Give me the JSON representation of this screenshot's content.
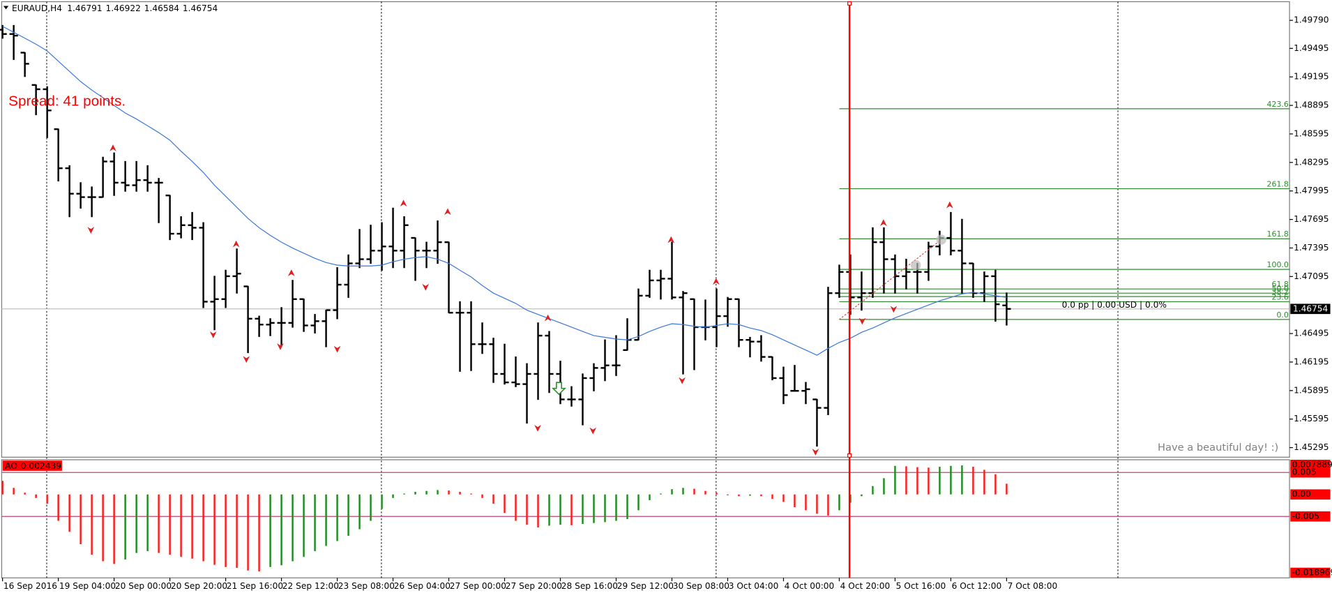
{
  "chart_data": [
    {
      "type": "ohlc",
      "title": "EURAUD,H4",
      "categories": [
        "16 Sep 2016",
        null,
        null,
        null,
        null,
        "19 Sep 04:00",
        null,
        null,
        null,
        null,
        "20 Sep 00:00",
        null,
        null,
        null,
        null,
        "20 Sep 20:00",
        null,
        null,
        null,
        null,
        "21 Sep 16:00",
        null,
        null,
        null,
        null,
        "22 Sep 12:00",
        null,
        null,
        null,
        null,
        "23 Sep 08:00",
        null,
        null,
        null,
        null,
        "26 Sep 04:00",
        null,
        null,
        null,
        null,
        "27 Sep 00:00",
        null,
        null,
        null,
        null,
        "27 Sep 20:00",
        null,
        null,
        null,
        null,
        "28 Sep 16:00",
        null,
        null,
        null,
        null,
        "29 Sep 12:00",
        null,
        null,
        null,
        null,
        "30 Sep 08:00",
        null,
        null,
        null,
        null,
        "3 Oct 04:00",
        null,
        null,
        null,
        null,
        "4 Oct 00:00",
        null,
        null,
        null,
        null,
        "4 Oct 20:00",
        null,
        null,
        null,
        null,
        "5 Oct 16:00",
        null,
        null,
        null,
        null,
        "6 Oct 12:00",
        null,
        null,
        null,
        null,
        "7 Oct 08:00"
      ],
      "open": [
        1.49691,
        1.49646,
        1.4945,
        1.4911,
        1.49065,
        1.48645,
        1.48234,
        1.47966,
        1.4793,
        1.4793,
        1.48305,
        1.48082,
        1.48055,
        1.48109,
        1.48082,
        1.47948,
        1.47545,
        1.47635,
        1.47608,
        1.4683,
        1.46857,
        1.47098,
        1.46991,
        1.46651,
        1.46589,
        1.46607,
        1.46607,
        1.46857,
        1.4658,
        1.46625,
        1.46741,
        1.47009,
        1.47233,
        1.47277,
        1.47367,
        1.47411,
        1.47367,
        1.47501,
        1.47367,
        1.47367,
        1.47456,
        1.46714,
        1.46714,
        1.46383,
        1.46383,
        1.4607,
        1.45981,
        1.45963,
        1.4607,
        1.46473,
        1.4607,
        1.45802,
        1.45802,
        1.46026,
        1.46133,
        1.4616,
        1.46321,
        1.46428,
        1.46893,
        1.47054,
        1.47072,
        1.46875,
        1.46857,
        1.46562,
        1.46562,
        1.46678,
        1.46857,
        1.46428,
        1.4641,
        1.46249,
        1.46026,
        1.45892,
        1.45892,
        1.45802,
        1.45713,
        1.4692,
        1.47143,
        1.46875,
        1.4692,
        1.47456,
        1.47277,
        1.47098,
        1.47143,
        1.47143,
        1.47411,
        1.47501,
        1.47367,
        1.47233,
        1.4692,
        1.47098,
        1.46791
      ],
      "high": [
        1.49736,
        1.49736,
        1.4945,
        1.4911,
        1.49092,
        1.48645,
        1.48261,
        1.48082,
        1.48037,
        1.4835,
        1.48395,
        1.48305,
        1.48305,
        1.48261,
        1.48127,
        1.47948,
        1.47724,
        1.47769,
        1.47662,
        1.47098,
        1.47161,
        1.47385,
        1.46991,
        1.46678,
        1.46651,
        1.46768,
        1.47054,
        1.46857,
        1.46696,
        1.46741,
        1.47188,
        1.47322,
        1.4759,
        1.47635,
        1.47662,
        1.47814,
        1.47724,
        1.47501,
        1.47456,
        1.4768,
        1.47456,
        1.4683,
        1.4683,
        1.46607,
        1.46446,
        1.46383,
        1.46249,
        1.46178,
        1.46607,
        1.46517,
        1.46204,
        1.45936,
        1.4607,
        1.46178,
        1.46428,
        1.46473,
        1.46651,
        1.46964,
        1.47161,
        1.47161,
        1.47456,
        1.46938,
        1.46857,
        1.46848,
        1.46964,
        1.46875,
        1.46857,
        1.46455,
        1.46473,
        1.46249,
        1.46142,
        1.4616,
        1.45981,
        1.45802,
        1.46982,
        1.47215,
        1.47322,
        1.47143,
        1.47608,
        1.47608,
        1.47322,
        1.47277,
        1.47233,
        1.47456,
        1.47572,
        1.47769,
        1.47697,
        1.47233,
        1.47143,
        1.47161,
        1.46922
      ],
      "low": [
        1.49602,
        1.49378,
        1.49199,
        1.48797,
        1.48556,
        1.481,
        1.47724,
        1.47814,
        1.47724,
        1.4793,
        1.47948,
        1.47992,
        1.47992,
        1.47992,
        1.47662,
        1.47483,
        1.47501,
        1.47483,
        1.46768,
        1.46535,
        1.46768,
        1.4692,
        1.46294,
        1.46464,
        1.46473,
        1.46374,
        1.46562,
        1.46517,
        1.465,
        1.46356,
        1.46651,
        1.46875,
        1.47188,
        1.47233,
        1.47161,
        1.47188,
        1.47188,
        1.47054,
        1.47188,
        1.47233,
        1.46714,
        1.46097,
        1.46106,
        1.46285,
        1.45981,
        1.45963,
        1.45936,
        1.45552,
        1.45802,
        1.45874,
        1.45757,
        1.45731,
        1.45534,
        1.45892,
        1.45999,
        1.46053,
        1.46321,
        1.46428,
        1.46875,
        1.46857,
        1.46857,
        1.4607,
        1.46115,
        1.46428,
        1.46356,
        1.46571,
        1.46356,
        1.46249,
        1.46204,
        1.46008,
        1.45757,
        1.45892,
        1.45757,
        1.4531,
        1.45641,
        1.46875,
        1.46696,
        1.46741,
        1.46875,
        1.4692,
        1.4692,
        1.46964,
        1.4692,
        1.47054,
        1.47322,
        1.47322,
        1.4692,
        1.46875,
        1.4683,
        1.46625,
        1.46584
      ],
      "close": [
        1.49646,
        1.49629,
        1.49333,
        1.49065,
        1.48842,
        1.48234,
        1.47966,
        1.4793,
        1.4793,
        1.48305,
        1.48082,
        1.48055,
        1.48109,
        1.48082,
        1.48082,
        1.47545,
        1.47635,
        1.47608,
        1.4683,
        1.46857,
        1.47098,
        1.47125,
        1.46651,
        1.46589,
        1.46607,
        1.46607,
        1.46857,
        1.4658,
        1.46625,
        1.46741,
        1.47009,
        1.47233,
        1.47277,
        1.47367,
        1.47411,
        1.47367,
        1.47635,
        1.47367,
        1.47367,
        1.47456,
        1.46714,
        1.46714,
        1.46383,
        1.46383,
        1.4607,
        1.45981,
        1.45963,
        1.4607,
        1.46473,
        1.4607,
        1.45802,
        1.45802,
        1.46026,
        1.46133,
        1.4616,
        1.4616,
        1.46428,
        1.46893,
        1.47054,
        1.47072,
        1.46875,
        1.4692,
        1.46562,
        1.46562,
        1.46678,
        1.46857,
        1.46428,
        1.4641,
        1.46249,
        1.46026,
        1.45847,
        1.45892,
        1.45909,
        1.45713,
        1.4692,
        1.47143,
        1.46875,
        1.4692,
        1.47456,
        1.47277,
        1.47098,
        1.47143,
        1.47143,
        1.47411,
        1.47501,
        1.47367,
        1.47233,
        1.4692,
        1.47098,
        1.46803,
        1.46754
      ],
      "color": "#000000",
      "ma": {
        "color": "#3c78d8",
        "values": [
          1.49727,
          1.49664,
          1.49602,
          1.49539,
          1.49468,
          1.4936,
          1.49253,
          1.49146,
          1.49056,
          1.48976,
          1.48895,
          1.48815,
          1.48752,
          1.48681,
          1.48609,
          1.48529,
          1.48413,
          1.48305,
          1.48189,
          1.48055,
          1.47939,
          1.47823,
          1.47706,
          1.47608,
          1.47528,
          1.47456,
          1.47394,
          1.4734,
          1.47286,
          1.47242,
          1.47215,
          1.47206,
          1.47206,
          1.47206,
          1.47215,
          1.4725,
          1.47277,
          1.47295,
          1.47304,
          1.47277,
          1.47233,
          1.47161,
          1.4709,
          1.47,
          1.4692,
          1.46866,
          1.46812,
          1.46741,
          1.46696,
          1.46651,
          1.46607,
          1.46562,
          1.46517,
          1.46473,
          1.46455,
          1.46437,
          1.46428,
          1.46464,
          1.46517,
          1.46562,
          1.46598,
          1.46589,
          1.46571,
          1.46562,
          1.4658,
          1.46598,
          1.46589,
          1.46553,
          1.46526,
          1.46482,
          1.46428,
          1.46374,
          1.46321,
          1.46267,
          1.46339,
          1.46401,
          1.46446,
          1.46508,
          1.46553,
          1.46607,
          1.4666,
          1.46705,
          1.4675,
          1.46795,
          1.46839,
          1.46875,
          1.46911,
          1.46929,
          1.46911,
          1.46893,
          1.46875
        ]
      },
      "ylim": [
        1.45194,
        1.49986
      ],
      "yticks": [
        {
          "value": 1.4979,
          "label": "1.49790"
        },
        {
          "value": 1.49495,
          "label": "1.49495"
        },
        {
          "value": 1.49195,
          "label": "1.49195"
        },
        {
          "value": 1.48895,
          "label": "1.48895"
        },
        {
          "value": 1.48595,
          "label": "1.48595"
        },
        {
          "value": 1.48295,
          "label": "1.48295"
        },
        {
          "value": 1.47995,
          "label": "1.47995"
        },
        {
          "value": 1.47695,
          "label": "1.47695"
        },
        {
          "value": 1.47395,
          "label": "1.47395"
        },
        {
          "value": 1.47095,
          "label": "1.47095"
        },
        {
          "value": 1.46495,
          "label": "1.46495"
        },
        {
          "value": 1.46195,
          "label": "1.46195"
        },
        {
          "value": 1.45895,
          "label": "1.45895"
        },
        {
          "value": 1.45595,
          "label": "1.45595"
        },
        {
          "value": 1.45295,
          "label": "1.45295"
        }
      ],
      "fib_color": "#2e8b2e",
      "fib_levels": [
        {
          "value": 1.4886,
          "label": "423.6"
        },
        {
          "value": 1.48019,
          "label": "261.8"
        },
        {
          "value": 1.47492,
          "label": "161.8"
        },
        {
          "value": 1.4717,
          "label": "100.0"
        },
        {
          "value": 1.46964,
          "label": "61.8"
        },
        {
          "value": 1.4692,
          "label": "50.0"
        },
        {
          "value": 1.46884,
          "label": "38.2"
        },
        {
          "value": 1.4683,
          "label": "23.6"
        },
        {
          "value": 1.46643,
          "label": "0.0"
        }
      ],
      "spread_text": "Spread: 41 points.",
      "greeting": "Have a beautiful day! :)",
      "trade_info": "0.0 pp | 0.00 USD | 0.0%"
    },
    {
      "type": "ao",
      "title": "AO",
      "values": [
        0.0031,
        0.0015,
        0.0004,
        -0.0008,
        -0.0021,
        -0.006,
        -0.0085,
        -0.0113,
        -0.0137,
        -0.0152,
        -0.0158,
        -0.0148,
        -0.0133,
        -0.0129,
        -0.0133,
        -0.0137,
        -0.0142,
        -0.0146,
        -0.0152,
        -0.016,
        -0.0165,
        -0.0167,
        -0.0173,
        -0.0175,
        -0.0165,
        -0.0161,
        -0.0152,
        -0.0142,
        -0.0129,
        -0.0117,
        -0.0106,
        -0.0094,
        -0.0079,
        -0.006,
        -0.0033,
        -0.0008,
        0.0002,
        0.0006,
        0.0008,
        0.001,
        0.0009,
        0.0006,
        0.0002,
        -0.0008,
        -0.0021,
        -0.0042,
        -0.006,
        -0.0069,
        -0.0075,
        -0.0071,
        -0.0069,
        -0.007,
        -0.0067,
        -0.0065,
        -0.0063,
        -0.006,
        -0.0056,
        -0.0036,
        -0.0013,
        0.0002,
        0.0012,
        0.0015,
        0.0013,
        0.0008,
        0.0004,
        -0.0002,
        -0.0004,
        -0.0003,
        -0.0004,
        -0.001,
        -0.0017,
        -0.0029,
        -0.0036,
        -0.0044,
        -0.0048,
        -0.0036,
        -0.0019,
        -0.0004,
        0.0019,
        0.0037,
        0.0065,
        0.0064,
        0.0062,
        0.0061,
        0.0063,
        0.0065,
        0.0066,
        0.0063,
        0.0056,
        0.0046,
        0.002439
      ],
      "up_color": "#1e8c1e",
      "down_color": "#ff1a1a",
      "ylim": [
        -0.018969,
        0.007889
      ],
      "yticks": [
        0.007889,
        0.005,
        {
          "value": 0,
          "label": "0.00"
        },
        -0.005,
        -0.018969
      ],
      "levels": [
        0.005,
        -0.005
      ],
      "level_color": "#c0407a"
    }
  ]
}
